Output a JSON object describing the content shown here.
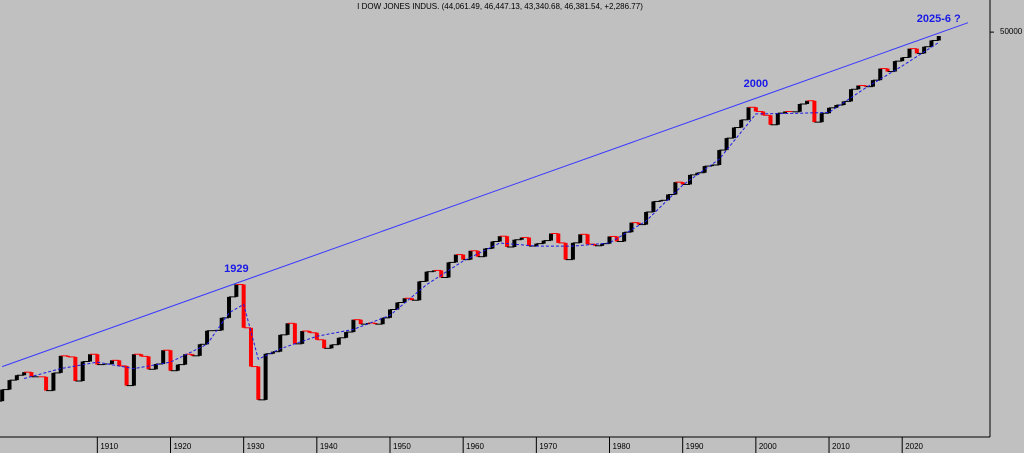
{
  "chart_data": {
    "type": "line",
    "title": "I DOW JONES INDUS. (44,061.49, 46,447.13, 43,340.68, 46,381.54, +2,286.77)",
    "log_scale": true,
    "xlim": [
      1896.7,
      2032
    ],
    "ylim": [
      20,
      93000
    ],
    "xticks": [
      1910,
      1920,
      1930,
      1940,
      1950,
      1960,
      1970,
      1980,
      1990,
      2000,
      2010,
      2020
    ],
    "yticks": [
      50000
    ],
    "up_color": "#000000",
    "down_color": "#ff0000",
    "x": [
      1896,
      1897,
      1898,
      1899,
      1900,
      1901,
      1902,
      1903,
      1904,
      1905,
      1906,
      1907,
      1908,
      1909,
      1910,
      1911,
      1912,
      1913,
      1914,
      1915,
      1916,
      1917,
      1918,
      1919,
      1920,
      1921,
      1922,
      1923,
      1924,
      1925,
      1926,
      1927,
      1928,
      1929,
      1930,
      1931,
      1932,
      1933,
      1934,
      1935,
      1936,
      1937,
      1938,
      1939,
      1940,
      1941,
      1942,
      1943,
      1944,
      1945,
      1946,
      1947,
      1948,
      1949,
      1950,
      1951,
      1952,
      1953,
      1954,
      1955,
      1956,
      1957,
      1958,
      1959,
      1960,
      1961,
      1962,
      1963,
      1964,
      1965,
      1966,
      1967,
      1968,
      1969,
      1970,
      1971,
      1972,
      1973,
      1974,
      1975,
      1976,
      1977,
      1978,
      1979,
      1980,
      1981,
      1982,
      1983,
      1984,
      1985,
      1986,
      1987,
      1988,
      1989,
      1990,
      1991,
      1992,
      1993,
      1994,
      1995,
      1996,
      1997,
      1998,
      1999,
      2000,
      2001,
      2002,
      2003,
      2004,
      2005,
      2006,
      2007,
      2008,
      2009,
      2010,
      2011,
      2012,
      2013,
      2014,
      2015,
      2016,
      2017,
      2018,
      2019,
      2020,
      2021,
      2022,
      2023,
      2024,
      2025
    ],
    "series": [
      {
        "color": "#000000",
        "values": [
          40,
          50,
          60,
          66,
          70,
          64,
          64,
          49,
          69,
          96,
          94,
          59,
          86,
          99,
          81,
          82,
          88,
          79,
          54,
          99,
          95,
          74,
          82,
          107,
          72,
          81,
          99,
          96,
          120,
          156,
          157,
          200,
          300,
          381,
          165,
          78,
          41,
          100,
          104,
          144,
          180,
          121,
          155,
          150,
          131,
          111,
          119,
          136,
          152,
          193,
          177,
          181,
          177,
          200,
          235,
          269,
          292,
          281,
          404,
          488,
          500,
          436,
          584,
          679,
          616,
          731,
          652,
          763,
          874,
          969,
          786,
          905,
          944,
          800,
          839,
          890,
          1020,
          851,
          616,
          852,
          1005,
          831,
          805,
          839,
          964,
          875,
          1047,
          1259,
          1212,
          1547,
          1896,
          1939,
          2169,
          2753,
          2634,
          3169,
          3301,
          3754,
          3834,
          5117,
          6448,
          7908,
          9181,
          11700,
          10787,
          10022,
          8342,
          10454,
          10783,
          10718,
          12463,
          13265,
          8776,
          10428,
          11578,
          12218,
          13104,
          16577,
          17823,
          17425,
          19763,
          24719,
          23327,
          28538,
          30606,
          36338,
          33147,
          37690,
          42544,
          46382
        ]
      },
      {
        "color": "#1a1ae6",
        "dashed": true,
        "x": [
          1900,
          1905,
          1910,
          1915,
          1920,
          1925,
          1928,
          1930,
          1932,
          1935,
          1940,
          1945,
          1950,
          1955,
          1960,
          1965,
          1970,
          1975,
          1980,
          1985,
          1990,
          1995,
          2000,
          2005,
          2010,
          2015,
          2020,
          2025
        ],
        "values": [
          62,
          75,
          85,
          75,
          85,
          120,
          220,
          260,
          90,
          110,
          140,
          160,
          210,
          380,
          600,
          850,
          800,
          800,
          850,
          1300,
          2600,
          4300,
          10300,
          10400,
          10600,
          17000,
          26000,
          41000
        ]
      },
      {
        "color": "#3a3aff",
        "x": [
          1897,
          2029
        ],
        "values": [
          78,
          60000
        ]
      }
    ],
    "annotations": [
      {
        "text": "1929",
        "x": 1929
      },
      {
        "text": "2000",
        "x": 2000
      },
      {
        "text": "2025-6 ?",
        "x": 2025
      }
    ]
  }
}
